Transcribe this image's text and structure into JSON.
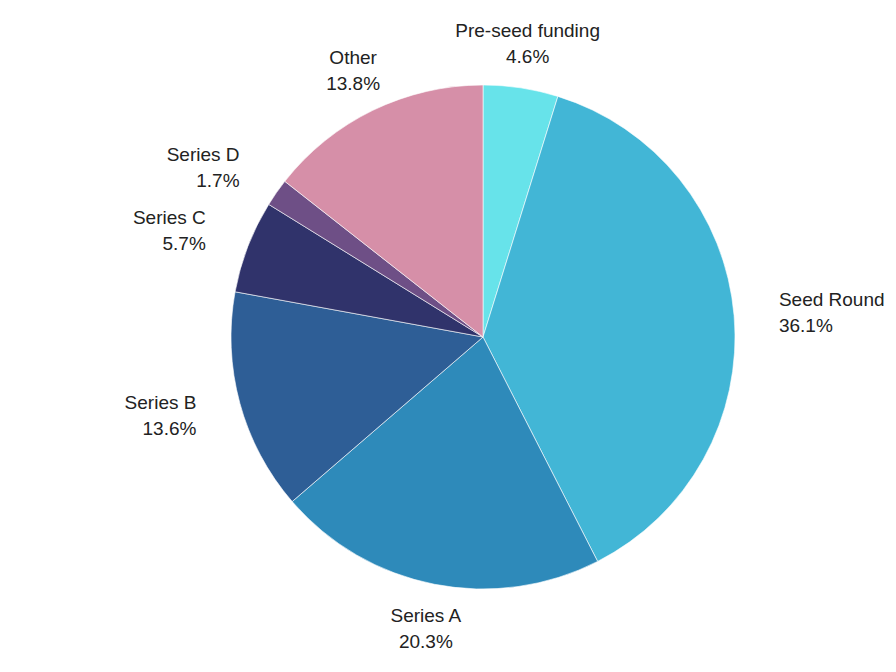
{
  "chart_data": {
    "type": "pie",
    "categories": [
      "Pre-seed funding",
      "Seed Round",
      "Series A",
      "Series B",
      "Series C",
      "Series D",
      "Other"
    ],
    "values": [
      4.6,
      36.1,
      20.3,
      13.6,
      5.7,
      1.7,
      13.8
    ],
    "value_labels": [
      "4.6%",
      "36.1%",
      "20.3%",
      "13.6%",
      "5.7%",
      "1.7%",
      "13.8%"
    ],
    "colors": [
      "#67e3ea",
      "#42b6d6",
      "#2e8aba",
      "#2e5e96",
      "#30336b",
      "#6e4f86",
      "#d68fa8"
    ],
    "data_labels": true
  }
}
